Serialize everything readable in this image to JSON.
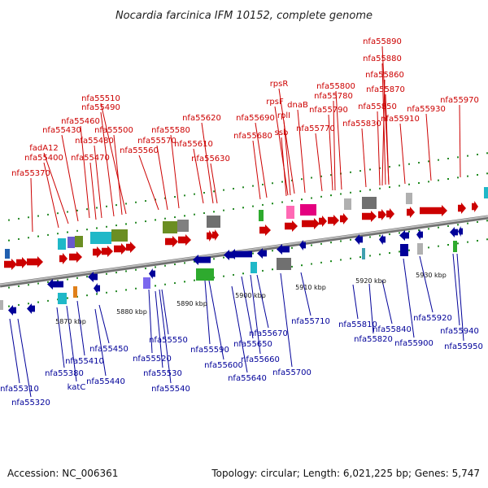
{
  "title": "Nocardia farcinica IFM 10152, complete genome",
  "footer": {
    "accession": "Accession: NC_006361",
    "summary": "Topology: circular; Length: 6,021,225 bp; Genes: 5,747"
  },
  "colors": {
    "forward": "#cc0000",
    "reverse": "#000099",
    "backbone": "#888888"
  },
  "forward_genes": [
    "nfa55370",
    "nfa55400",
    "fadA12",
    "nfa55430",
    "nfa55460",
    "nfa55470",
    "nfa55480",
    "nfa55490",
    "nfa55500",
    "nfa55510",
    "nfa55560",
    "nfa55570",
    "nfa55580",
    "nfa55610",
    "nfa55620",
    "nfa55630",
    "nfa55680",
    "nfa55690",
    "ssb",
    "rplI",
    "rpsF",
    "rpsR",
    "dnaB",
    "nfa55770",
    "nfa55780",
    "nfa55790",
    "nfa55800",
    "nfa55830",
    "nfa55850",
    "nfa55860",
    "nfa55870",
    "nfa55880",
    "nfa55890",
    "nfa55910",
    "nfa55930",
    "nfa55970"
  ],
  "reverse_genes": [
    "nfa55310",
    "nfa55320",
    "nfa55380",
    "katC",
    "nfa55410",
    "nfa55440",
    "nfa55450",
    "nfa55520",
    "nfa55530",
    "nfa55540",
    "nfa55550",
    "nfa55590",
    "nfa55600",
    "nfa55640",
    "nfa55650",
    "nfa55660",
    "nfa55670",
    "nfa55700",
    "nfa55710",
    "nfa55810",
    "nfa55820",
    "nfa55840",
    "nfa55900",
    "nfa55920",
    "nfa55940",
    "nfa55950"
  ],
  "ticks": [
    "5870 kbp",
    "5880 kbp",
    "5890 kbp",
    "5900 kbp",
    "5910 kbp",
    "5920 kbp",
    "5930 kbp"
  ]
}
